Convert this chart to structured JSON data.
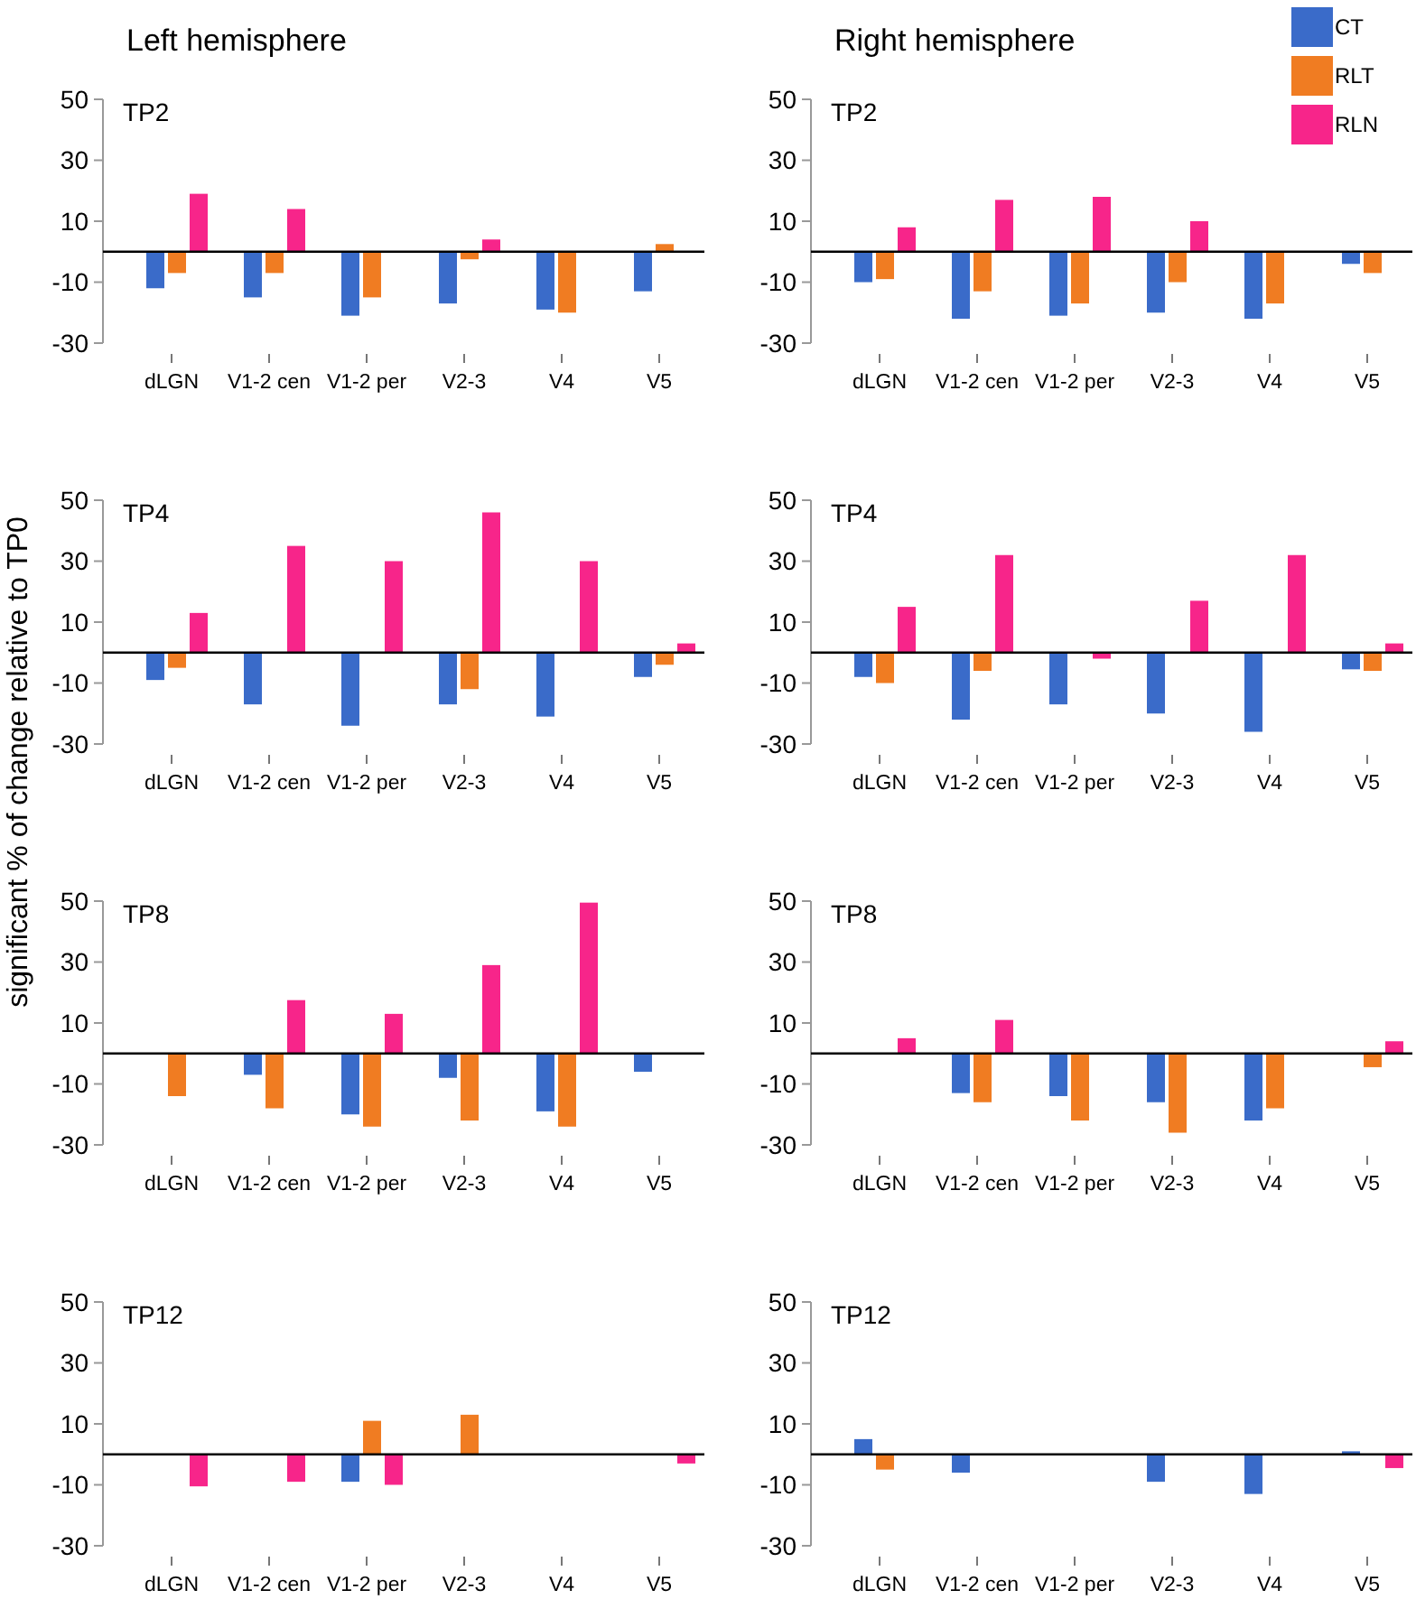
{
  "chart_data": [
    {
      "type": "bar",
      "title": "TP2",
      "subtitle": "Left hemisphere",
      "categories": [
        "dLGN",
        "V1-2 cen",
        "V1-2 per",
        "V2-3",
        "V4",
        "V5"
      ],
      "ylim": [
        -30,
        50
      ],
      "yticks": [
        50,
        30,
        10,
        -10,
        -30
      ],
      "grid": false,
      "legend": false,
      "series": [
        {
          "color": "#3a6bc9",
          "values": [
            -12,
            -15,
            -21,
            -17,
            -19,
            -13
          ]
        },
        {
          "color": "#f07c22",
          "values": [
            -7,
            -7,
            -15,
            -2.5,
            -20,
            2.5
          ]
        },
        {
          "color": "#f7258a",
          "values": [
            19,
            14,
            null,
            4,
            null,
            null
          ]
        }
      ]
    },
    {
      "type": "bar",
      "title": "TP2",
      "subtitle": "Right hemisphere",
      "categories": [
        "dLGN",
        "V1-2 cen",
        "V1-2 per",
        "V2-3",
        "V4",
        "V5"
      ],
      "ylim": [
        -30,
        50
      ],
      "yticks": [
        50,
        30,
        10,
        -10,
        -30
      ],
      "grid": false,
      "legend": "top right",
      "series": [
        {
          "name": "CT",
          "color": "#3a6bc9",
          "values": [
            -10,
            -22,
            -21,
            -20,
            -22,
            -4
          ]
        },
        {
          "name": "RLT",
          "color": "#f07c22",
          "values": [
            -9,
            -13,
            -17,
            -10,
            -17,
            -7
          ]
        },
        {
          "name": "RLN",
          "color": "#f7258a",
          "values": [
            8,
            17,
            18,
            10,
            null,
            null
          ]
        }
      ]
    },
    {
      "type": "bar",
      "title": "TP4",
      "ylabel": "significant % of  change relative to TP0",
      "categories": [
        "dLGN",
        "V1-2 cen",
        "V1-2 per",
        "V2-3",
        "V4",
        "V5"
      ],
      "ylim": [
        -30,
        50
      ],
      "yticks": [
        50,
        30,
        10,
        -10,
        -30
      ],
      "grid": false,
      "legend": false,
      "series": [
        {
          "color": "#3a6bc9",
          "values": [
            -9,
            -17,
            -24,
            -17,
            -21,
            -8
          ]
        },
        {
          "color": "#f07c22",
          "values": [
            -5,
            null,
            null,
            -12,
            null,
            -4
          ]
        },
        {
          "color": "#f7258a",
          "values": [
            13,
            35,
            30,
            46,
            30,
            3
          ]
        }
      ]
    },
    {
      "type": "bar",
      "title": "TP4",
      "categories": [
        "dLGN",
        "V1-2 cen",
        "V1-2 per",
        "V2-3",
        "V4",
        "V5"
      ],
      "ylim": [
        -30,
        50
      ],
      "yticks": [
        50,
        30,
        10,
        -10,
        -30
      ],
      "grid": false,
      "legend": false,
      "series": [
        {
          "color": "#3a6bc9",
          "values": [
            -8,
            -22,
            -17,
            -20,
            -26,
            -5.5
          ]
        },
        {
          "color": "#f07c22",
          "values": [
            -10,
            -6,
            null,
            null,
            null,
            -6
          ]
        },
        {
          "color": "#f7258a",
          "values": [
            15,
            32,
            -2,
            17,
            32,
            3
          ]
        }
      ]
    },
    {
      "type": "bar",
      "title": "TP8",
      "categories": [
        "dLGN",
        "V1-2 cen",
        "V1-2 per",
        "V2-3",
        "V4",
        "V5"
      ],
      "ylim": [
        -30,
        50
      ],
      "yticks": [
        50,
        30,
        10,
        -10,
        -30
      ],
      "grid": false,
      "legend": false,
      "series": [
        {
          "color": "#3a6bc9",
          "values": [
            null,
            -7,
            -20,
            -8,
            -19,
            -6
          ]
        },
        {
          "color": "#f07c22",
          "values": [
            -14,
            -18,
            -24,
            -22,
            -24,
            null
          ]
        },
        {
          "color": "#f7258a",
          "values": [
            null,
            17.5,
            13,
            29,
            49.5,
            null
          ]
        }
      ]
    },
    {
      "type": "bar",
      "title": "TP8",
      "categories": [
        "dLGN",
        "V1-2 cen",
        "V1-2 per",
        "V2-3",
        "V4",
        "V5"
      ],
      "ylim": [
        -30,
        50
      ],
      "yticks": [
        50,
        30,
        10,
        -10,
        -30
      ],
      "grid": false,
      "legend": false,
      "series": [
        {
          "color": "#3a6bc9",
          "values": [
            null,
            -13,
            -14,
            -16,
            -22,
            null
          ]
        },
        {
          "color": "#f07c22",
          "values": [
            null,
            -16,
            -22,
            -26,
            -18,
            -4.5
          ]
        },
        {
          "color": "#f7258a",
          "values": [
            5,
            11,
            null,
            null,
            null,
            4
          ]
        }
      ]
    },
    {
      "type": "bar",
      "title": "TP12",
      "categories": [
        "dLGN",
        "V1-2 cen",
        "V1-2 per",
        "V2-3",
        "V4",
        "V5"
      ],
      "ylim": [
        -30,
        50
      ],
      "yticks": [
        50,
        30,
        10,
        -10,
        -30
      ],
      "grid": false,
      "legend": false,
      "series": [
        {
          "color": "#3a6bc9",
          "values": [
            null,
            null,
            -9,
            null,
            null,
            null
          ]
        },
        {
          "color": "#f07c22",
          "values": [
            null,
            null,
            11,
            13,
            null,
            null
          ]
        },
        {
          "color": "#f7258a",
          "values": [
            -10.5,
            -9,
            -10,
            null,
            null,
            -3
          ]
        }
      ]
    },
    {
      "type": "bar",
      "title": "TP12",
      "categories": [
        "dLGN",
        "V1-2 cen",
        "V1-2 per",
        "V2-3",
        "V4",
        "V5"
      ],
      "ylim": [
        -30,
        50
      ],
      "yticks": [
        50,
        30,
        10,
        -10,
        -30
      ],
      "grid": false,
      "legend": false,
      "series": [
        {
          "color": "#3a6bc9",
          "values": [
            5,
            -6,
            null,
            -9,
            -13,
            1
          ]
        },
        {
          "color": "#f07c22",
          "values": [
            -5,
            null,
            null,
            null,
            null,
            null
          ]
        },
        {
          "color": "#f7258a",
          "values": [
            null,
            null,
            null,
            null,
            null,
            -4.5
          ]
        }
      ]
    }
  ]
}
